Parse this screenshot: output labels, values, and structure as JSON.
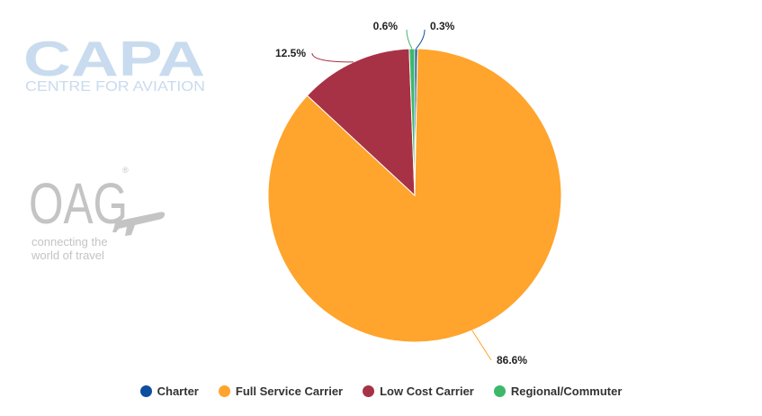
{
  "logos": {
    "capa_wordmark": "CAPA",
    "capa_subtitle": "CENTRE FOR AVIATION",
    "oag_wordmark": "OAG",
    "oag_registered": "®",
    "oag_tagline_line1": "connecting the",
    "oag_tagline_line2": "world of travel",
    "capa_color": "#c9dbee",
    "oag_color": "#c4c4c4"
  },
  "chart_data": {
    "type": "pie",
    "title": "",
    "legend_position": "bottom-center",
    "slices": [
      {
        "name": "Charter",
        "value": 0.3,
        "label": "0.3%",
        "color": "#0d4f9e"
      },
      {
        "name": "Full Service Carrier",
        "value": 86.6,
        "label": "86.6%",
        "color": "#ffa42c"
      },
      {
        "name": "Low Cost Carrier",
        "value": 12.5,
        "label": "12.5%",
        "color": "#a83245"
      },
      {
        "name": "Regional/Commuter",
        "value": 0.6,
        "label": "0.6%",
        "color": "#3db86a"
      }
    ]
  }
}
